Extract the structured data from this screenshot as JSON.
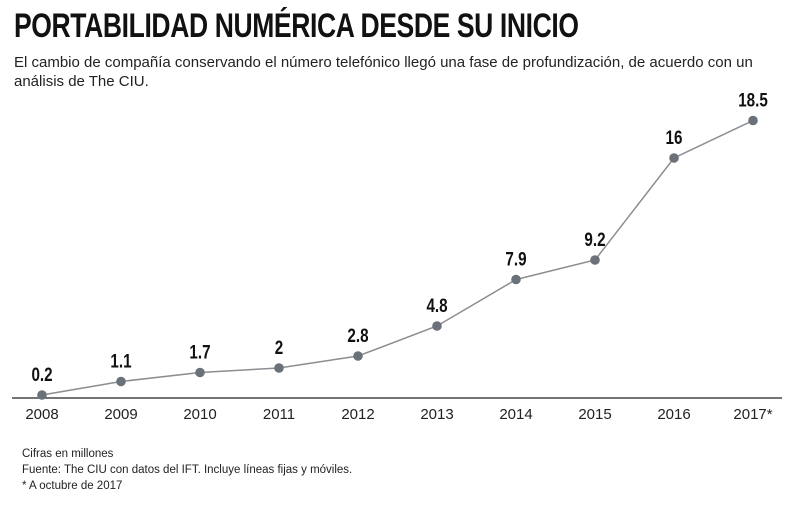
{
  "title": "PORTABILIDAD NUMÉRICA DESDE SU INICIO",
  "subtitle": "El cambio de compañía conservando el número telefónico llegó una fase de profundización, de acuerdo con un análisis de The CIU.",
  "notes": {
    "units": "Cifras en millones",
    "source": "Fuente: The CIU con datos del IFT. Incluye líneas fijas y móviles.",
    "footnote": "* A octubre de 2017"
  },
  "colors": {
    "line": "#8a8e92",
    "point": "#6b7178",
    "axis": "#222222",
    "text": "#111111"
  },
  "chart_data": {
    "type": "line",
    "categories": [
      "2008",
      "2009",
      "2010",
      "2011",
      "2012",
      "2013",
      "2014",
      "2015",
      "2016",
      "2017*"
    ],
    "values": [
      0.2,
      1.1,
      1.7,
      2,
      2.8,
      4.8,
      7.9,
      9.2,
      16,
      18.5
    ],
    "labels": [
      "0.2",
      "1.1",
      "1.7",
      "2",
      "2.8",
      "4.8",
      "7.9",
      "9.2",
      "16",
      "18.5"
    ],
    "ylim": [
      0,
      20
    ],
    "grid": false,
    "legend": "none"
  }
}
